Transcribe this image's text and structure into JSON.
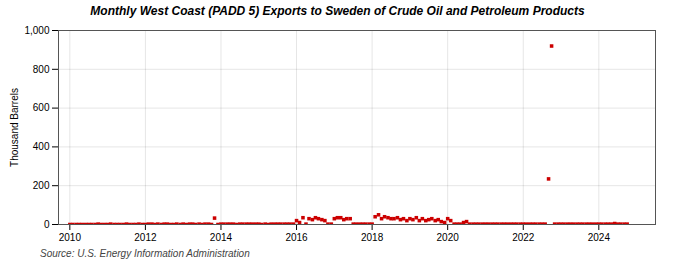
{
  "chart_data": {
    "type": "scatter",
    "title": "Monthly West Coast (PADD 5) Exports to Sweden of Crude Oil and Petroleum Products",
    "ylabel": "Thousand Barrels",
    "source": "Source: U.S. Energy Information Administration",
    "color": "#cc0000",
    "marker": "square",
    "grid": true,
    "xlim": [
      2009.7,
      2025.5
    ],
    "xticks": [
      2010,
      2012,
      2014,
      2016,
      2018,
      2020,
      2022,
      2024
    ],
    "ylim": [
      0,
      1000
    ],
    "yticks": [
      0,
      200,
      400,
      600,
      800,
      {
        "value": 1000,
        "label": "1,000"
      }
    ],
    "x": [
      2010.0,
      2010.08,
      2010.17,
      2010.25,
      2010.33,
      2010.42,
      2010.5,
      2010.58,
      2010.67,
      2010.75,
      2010.83,
      2010.92,
      2011.0,
      2011.08,
      2011.17,
      2011.25,
      2011.33,
      2011.42,
      2011.5,
      2011.58,
      2011.67,
      2011.75,
      2011.83,
      2011.92,
      2012.0,
      2012.08,
      2012.17,
      2012.25,
      2012.33,
      2012.42,
      2012.5,
      2012.58,
      2012.67,
      2012.75,
      2012.83,
      2012.92,
      2013.0,
      2013.08,
      2013.17,
      2013.25,
      2013.33,
      2013.42,
      2013.5,
      2013.58,
      2013.67,
      2013.75,
      2013.83,
      2013.92,
      2014.0,
      2014.08,
      2014.17,
      2014.25,
      2014.33,
      2014.42,
      2014.5,
      2014.58,
      2014.67,
      2014.75,
      2014.83,
      2014.92,
      2015.0,
      2015.08,
      2015.17,
      2015.25,
      2015.33,
      2015.42,
      2015.5,
      2015.58,
      2015.67,
      2015.75,
      2015.83,
      2015.92,
      2016.0,
      2016.08,
      2016.17,
      2016.25,
      2016.33,
      2016.42,
      2016.5,
      2016.58,
      2016.67,
      2016.75,
      2016.83,
      2016.92,
      2017.0,
      2017.08,
      2017.17,
      2017.25,
      2017.33,
      2017.42,
      2017.5,
      2017.58,
      2017.67,
      2017.75,
      2017.83,
      2017.92,
      2018.0,
      2018.08,
      2018.17,
      2018.25,
      2018.33,
      2018.42,
      2018.5,
      2018.58,
      2018.67,
      2018.75,
      2018.83,
      2018.92,
      2019.0,
      2019.08,
      2019.17,
      2019.25,
      2019.33,
      2019.42,
      2019.5,
      2019.58,
      2019.67,
      2019.75,
      2019.83,
      2019.92,
      2020.0,
      2020.08,
      2020.17,
      2020.25,
      2020.33,
      2020.42,
      2020.5,
      2020.58,
      2020.67,
      2020.75,
      2020.83,
      2020.92,
      2021.0,
      2021.08,
      2021.17,
      2021.25,
      2021.33,
      2021.42,
      2021.5,
      2021.58,
      2021.67,
      2021.75,
      2021.83,
      2021.92,
      2022.0,
      2022.08,
      2022.17,
      2022.25,
      2022.33,
      2022.42,
      2022.5,
      2022.58,
      2022.67,
      2022.75,
      2022.83,
      2022.92,
      2023.0,
      2023.08,
      2023.17,
      2023.25,
      2023.33,
      2023.42,
      2023.5,
      2023.58,
      2023.67,
      2023.75,
      2023.83,
      2023.92,
      2024.0,
      2024.08,
      2024.17,
      2024.25,
      2024.33,
      2024.42,
      2024.5,
      2024.58,
      2024.67,
      2024.75
    ],
    "values": [
      0,
      0,
      0,
      0,
      0,
      0,
      0,
      0,
      0,
      2,
      0,
      0,
      0,
      2,
      0,
      0,
      0,
      0,
      2,
      0,
      0,
      0,
      2,
      0,
      0,
      2,
      2,
      0,
      2,
      0,
      2,
      2,
      0,
      0,
      2,
      0,
      2,
      0,
      2,
      2,
      0,
      2,
      0,
      2,
      2,
      0,
      33,
      0,
      2,
      2,
      2,
      2,
      2,
      0,
      2,
      2,
      2,
      2,
      2,
      2,
      2,
      0,
      2,
      0,
      2,
      2,
      2,
      2,
      2,
      2,
      2,
      2,
      20,
      10,
      35,
      2,
      30,
      25,
      35,
      30,
      25,
      20,
      2,
      2,
      30,
      35,
      35,
      25,
      30,
      30,
      2,
      2,
      2,
      2,
      2,
      2,
      2,
      40,
      50,
      30,
      40,
      35,
      30,
      30,
      35,
      25,
      30,
      20,
      30,
      25,
      35,
      20,
      30,
      20,
      25,
      30,
      20,
      25,
      15,
      10,
      30,
      20,
      2,
      2,
      2,
      10,
      15,
      2,
      2,
      2,
      2,
      2,
      2,
      2,
      2,
      2,
      2,
      2,
      2,
      2,
      2,
      2,
      2,
      2,
      2,
      2,
      2,
      2,
      2,
      2,
      2,
      2,
      235,
      920,
      2,
      2,
      2,
      2,
      2,
      2,
      2,
      2,
      2,
      2,
      2,
      2,
      2,
      2,
      2,
      2,
      2,
      2,
      2,
      5,
      2,
      2,
      2,
      2
    ]
  }
}
